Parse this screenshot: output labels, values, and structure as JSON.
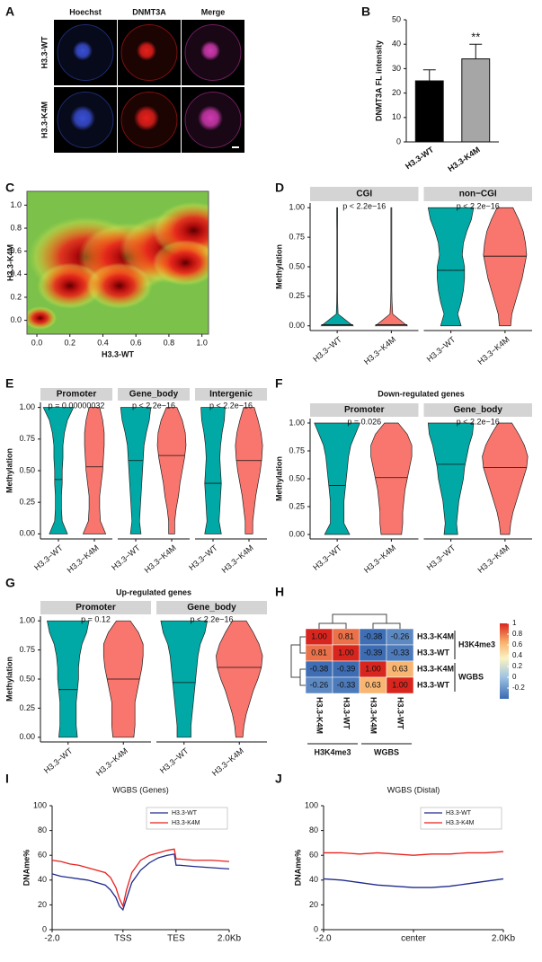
{
  "chart_data": [
    {
      "type": "image",
      "panel": "A",
      "columns": [
        {
          "name": "Hoechst",
          "color": "#3a4fd6"
        },
        {
          "name": "DNMT3A",
          "color": "#e8201c"
        },
        {
          "name": "Merge",
          "color": "#d03ab0"
        }
      ],
      "rows": [
        "H3.3-WT",
        "H3.3-K4M"
      ]
    },
    {
      "type": "bar",
      "panel": "B",
      "ylabel": "DNMT3A FL intensity",
      "categories": [
        "H3.3-WT",
        "H3.3-K4M"
      ],
      "values": [
        25,
        34
      ],
      "errors": [
        4.5,
        6
      ],
      "colors": [
        "#000000",
        "#a6a6a6"
      ],
      "ylim": [
        0,
        50
      ],
      "yticks": [
        0,
        10,
        20,
        30,
        40,
        50
      ],
      "annotations": [
        {
          "category": "H3.3-K4M",
          "text": "**"
        }
      ]
    },
    {
      "type": "density",
      "panel": "C",
      "xlabel": "H3.3-WT",
      "ylabel": "H3.3-K4M",
      "background": "#7cc24a",
      "x": [
        0.02,
        0.3,
        0.55,
        0.8,
        0.95,
        0.2,
        0.5,
        0.9
      ],
      "y": [
        0.02,
        0.55,
        0.55,
        0.62,
        0.78,
        0.3,
        0.3,
        0.5
      ],
      "spread": [
        0.1,
        0.35,
        0.3,
        0.3,
        0.25,
        0.2,
        0.2,
        0.2
      ],
      "xlim": [
        -0.06,
        1.04
      ],
      "ylim": [
        -0.12,
        1.12
      ],
      "xticks": [
        {
          "value": 0,
          "label": "0.0"
        },
        {
          "value": 0.2,
          "label": "0.2"
        },
        {
          "value": 0.4,
          "label": "0.4"
        },
        {
          "value": 0.6,
          "label": "0.6"
        },
        {
          "value": 0.8,
          "label": "0.8"
        },
        {
          "value": 1,
          "label": "1.0"
        }
      ],
      "yticks": [
        {
          "value": 0,
          "label": "0.0"
        },
        {
          "value": 0.2,
          "label": "0.2"
        },
        {
          "value": 0.4,
          "label": "0.4"
        },
        {
          "value": 0.6,
          "label": "0.6"
        },
        {
          "value": 0.8,
          "label": "0.8"
        },
        {
          "value": 1,
          "label": "1.0"
        }
      ]
    },
    {
      "type": "violin",
      "panel": "D",
      "ylabel": "Methylation",
      "ylim": [
        -0.04,
        1.04
      ],
      "yticks": [
        {
          "value": 0,
          "label": "0.00"
        },
        {
          "value": 0.25,
          "label": "0.25"
        },
        {
          "value": 0.5,
          "label": "0.50"
        },
        {
          "value": 0.75,
          "label": "0.75"
        },
        {
          "value": 1,
          "label": "1.00"
        }
      ],
      "levels": [
        0,
        0.1,
        0.2,
        0.3,
        0.4,
        0.5,
        0.6,
        0.7,
        0.8,
        0.9,
        1
      ],
      "categories": [
        "H3.3−WT",
        "H3.3−K4M"
      ],
      "colors": [
        "#00a9a5",
        "#f8766d"
      ],
      "facets": [
        {
          "name": "CGI",
          "pvalue": "p < 2.2e−16",
          "medians": [
            0.01,
            0.01
          ],
          "widths": [
            [
              0.7,
              0.04,
              0.02,
              0.015,
              0.015,
              0.015,
              0.015,
              0.015,
              0.015,
              0.02,
              0.02
            ],
            [
              0.7,
              0.06,
              0.03,
              0.02,
              0.02,
              0.02,
              0.02,
              0.02,
              0.02,
              0.02,
              0.02
            ]
          ]
        },
        {
          "name": "non−CGI",
          "pvalue": "p < 2.2e−16",
          "medians": [
            0.47,
            0.59
          ],
          "widths": [
            [
              0.45,
              0.3,
              0.45,
              0.55,
              0.6,
              0.6,
              0.5,
              0.55,
              0.7,
              0.9,
              1.0
            ],
            [
              0.25,
              0.3,
              0.45,
              0.6,
              0.75,
              0.85,
              0.95,
              0.9,
              0.8,
              0.6,
              0.35
            ]
          ]
        }
      ]
    },
    {
      "type": "violin",
      "panel": "E",
      "ylabel": "Methylation",
      "ylim": [
        -0.04,
        1.04
      ],
      "yticks": [
        {
          "value": 0,
          "label": "0.00"
        },
        {
          "value": 0.25,
          "label": "0.25"
        },
        {
          "value": 0.5,
          "label": "0.50"
        },
        {
          "value": 0.75,
          "label": "0.75"
        },
        {
          "value": 1,
          "label": "1.00"
        }
      ],
      "levels": [
        0,
        0.1,
        0.2,
        0.3,
        0.4,
        0.5,
        0.6,
        0.7,
        0.8,
        0.9,
        1
      ],
      "categories": [
        "H3.3−WT",
        "H3.3−K4M"
      ],
      "colors": [
        "#00a9a5",
        "#f8766d"
      ],
      "facets": [
        {
          "name": "Promoter",
          "pvalue": "p = 0.00000032",
          "medians": [
            0.43,
            0.53
          ],
          "widths": [
            [
              0.6,
              0.25,
              0.2,
              0.2,
              0.25,
              0.25,
              0.3,
              0.3,
              0.4,
              0.6,
              1.0
            ],
            [
              0.75,
              0.4,
              0.35,
              0.35,
              0.45,
              0.55,
              0.6,
              0.65,
              0.65,
              0.55,
              0.35
            ]
          ]
        },
        {
          "name": "Gene_body",
          "pvalue": "p < 2.2e−16",
          "medians": [
            0.58,
            0.62
          ],
          "widths": [
            [
              0.35,
              0.25,
              0.3,
              0.35,
              0.4,
              0.45,
              0.5,
              0.55,
              0.7,
              0.9,
              1.0
            ],
            [
              0.2,
              0.2,
              0.3,
              0.45,
              0.55,
              0.7,
              0.85,
              0.95,
              0.9,
              0.7,
              0.35
            ]
          ]
        },
        {
          "name": "Intergenic",
          "pvalue": "p < 2.2e−16",
          "medians": [
            0.4,
            0.58
          ],
          "widths": [
            [
              0.55,
              0.4,
              0.45,
              0.5,
              0.55,
              0.5,
              0.45,
              0.5,
              0.6,
              0.75,
              0.8
            ],
            [
              0.25,
              0.25,
              0.35,
              0.45,
              0.6,
              0.75,
              0.85,
              0.9,
              0.8,
              0.6,
              0.35
            ]
          ]
        }
      ]
    },
    {
      "type": "violin",
      "panel": "F",
      "title": "Down-regulated genes",
      "ylabel": "Methylation",
      "ylim": [
        -0.04,
        1.04
      ],
      "yticks": [
        {
          "value": 0,
          "label": "0.00"
        },
        {
          "value": 0.25,
          "label": "0.25"
        },
        {
          "value": 0.5,
          "label": "0.50"
        },
        {
          "value": 0.75,
          "label": "0.75"
        },
        {
          "value": 1,
          "label": "1.00"
        }
      ],
      "levels": [
        0,
        0.1,
        0.2,
        0.3,
        0.4,
        0.5,
        0.6,
        0.7,
        0.8,
        0.9,
        1
      ],
      "categories": [
        "H3.3−WT",
        "H3.3−K4M"
      ],
      "colors": [
        "#00a9a5",
        "#f8766d"
      ],
      "facets": [
        {
          "name": "Promoter",
          "pvalue": "p = 0.026",
          "medians": [
            0.44,
            0.51
          ],
          "widths": [
            [
              0.55,
              0.3,
              0.3,
              0.3,
              0.35,
              0.4,
              0.45,
              0.5,
              0.6,
              0.8,
              1.0
            ],
            [
              0.45,
              0.5,
              0.5,
              0.55,
              0.6,
              0.7,
              0.8,
              0.9,
              0.9,
              0.7,
              0.3
            ]
          ]
        },
        {
          "name": "Gene_body",
          "pvalue": "p < 2.2e−16",
          "medians": [
            0.63,
            0.6
          ],
          "widths": [
            [
              0.3,
              0.25,
              0.3,
              0.35,
              0.45,
              0.55,
              0.6,
              0.7,
              0.8,
              0.95,
              1.0
            ],
            [
              0.2,
              0.25,
              0.35,
              0.5,
              0.65,
              0.8,
              0.95,
              1.0,
              0.85,
              0.6,
              0.3
            ]
          ]
        }
      ]
    },
    {
      "type": "violin",
      "panel": "G",
      "title": "Up-regulated genes",
      "ylabel": "Methylation",
      "ylim": [
        -0.04,
        1.04
      ],
      "yticks": [
        {
          "value": 0,
          "label": "0.00"
        },
        {
          "value": 0.25,
          "label": "0.25"
        },
        {
          "value": 0.5,
          "label": "0.50"
        },
        {
          "value": 0.75,
          "label": "0.75"
        },
        {
          "value": 1,
          "label": "1.00"
        }
      ],
      "levels": [
        0,
        0.1,
        0.2,
        0.3,
        0.4,
        0.5,
        0.6,
        0.7,
        0.8,
        0.9,
        1
      ],
      "categories": [
        "H3.3−WT",
        "H3.3−K4M"
      ],
      "colors": [
        "#00a9a5",
        "#f8766d"
      ],
      "facets": [
        {
          "name": "Promoter",
          "pvalue": "p = 0.12",
          "medians": [
            0.41,
            0.5
          ],
          "widths": [
            [
              0.4,
              0.35,
              0.35,
              0.35,
              0.4,
              0.45,
              0.45,
              0.5,
              0.6,
              0.8,
              0.9
            ],
            [
              0.45,
              0.5,
              0.5,
              0.5,
              0.6,
              0.7,
              0.8,
              0.85,
              0.85,
              0.65,
              0.3
            ]
          ]
        },
        {
          "name": "Gene_body",
          "pvalue": "p < 2.2e−16",
          "medians": [
            0.47,
            0.6
          ],
          "widths": [
            [
              0.3,
              0.3,
              0.35,
              0.4,
              0.45,
              0.5,
              0.55,
              0.6,
              0.7,
              0.9,
              1.0
            ],
            [
              0.15,
              0.2,
              0.3,
              0.45,
              0.6,
              0.8,
              0.95,
              1.0,
              0.85,
              0.6,
              0.3
            ]
          ]
        }
      ]
    },
    {
      "type": "heatmap",
      "panel": "H",
      "rows": [
        "H3.3-K4M",
        "H3.3-WT",
        "H3.3-K4M",
        "H3.3-WT"
      ],
      "columns": [
        "H3.3-K4M",
        "H3.3-WT",
        "H3.3-K4M",
        "H3.3-WT"
      ],
      "groups": [
        "H3K4me3",
        "WGBS"
      ],
      "values": [
        [
          1,
          0.81,
          -0.38,
          -0.26
        ],
        [
          0.81,
          1,
          -0.39,
          -0.33
        ],
        [
          -0.38,
          -0.39,
          1,
          0.63
        ],
        [
          -0.26,
          -0.33,
          0.63,
          1
        ]
      ],
      "value_labels": [
        [
          "1.00",
          "0.81",
          "-0.38",
          "-0.26"
        ],
        [
          "0.81",
          "1.00",
          "-0.39",
          "-0.33"
        ],
        [
          "-0.38",
          "-0.39",
          "1.00",
          "0.63"
        ],
        [
          "-0.26",
          "-0.33",
          "0.63",
          "1.00"
        ]
      ],
      "clim": [
        -0.4,
        1
      ],
      "colorticks": [
        1,
        0.8,
        0.6,
        0.4,
        0.2,
        0,
        -0.2
      ],
      "colorscale": [
        [
          -0.4,
          "#3a6ab2"
        ],
        [
          0,
          "#9ec3e2"
        ],
        [
          0.35,
          "#fbf3c4"
        ],
        [
          0.65,
          "#f9b16c"
        ],
        [
          1,
          "#d8261f"
        ]
      ]
    },
    {
      "type": "line",
      "panel": "I",
      "title": "WGBS (Genes)",
      "ylabel": "DNAme%",
      "legend": "upper right",
      "x": [
        0,
        5,
        10,
        15,
        20,
        25,
        30,
        33,
        36,
        38,
        40,
        42,
        45,
        50,
        55,
        60,
        65,
        69,
        70,
        72,
        80,
        90,
        100
      ],
      "series": [
        {
          "name": "H3.3-WT",
          "color": "#1f2a8c",
          "values": [
            45,
            43,
            42,
            41,
            40,
            38,
            36,
            32,
            26,
            19,
            16,
            25,
            38,
            48,
            54,
            58,
            60,
            61,
            52,
            52,
            51,
            50,
            49
          ]
        },
        {
          "name": "H3.3-K4M",
          "color": "#e8201c",
          "values": [
            56,
            55,
            53,
            52,
            50,
            48,
            46,
            42,
            34,
            25,
            19,
            32,
            46,
            56,
            60,
            62,
            64,
            65,
            57,
            57,
            56,
            56,
            55
          ]
        }
      ],
      "xlim": [
        0,
        100
      ],
      "xticks": [
        {
          "value": 0,
          "label": "-2.0"
        },
        {
          "value": 40,
          "label": "TSS"
        },
        {
          "value": 70,
          "label": "TES"
        },
        {
          "value": 100,
          "label": "2.0Kb"
        }
      ],
      "ylim": [
        0,
        100
      ],
      "yticks": [
        0,
        20,
        40,
        60,
        80,
        100
      ]
    },
    {
      "type": "line",
      "panel": "J",
      "title": "WGBS (Distal)",
      "ylabel": "DNAme%",
      "legend": "upper right",
      "x": [
        0,
        10,
        20,
        30,
        40,
        50,
        60,
        70,
        80,
        90,
        100
      ],
      "series": [
        {
          "name": "H3.3-WT",
          "color": "#1f2a8c",
          "values": [
            41,
            40,
            38,
            36,
            35,
            34,
            34,
            35,
            37,
            39,
            41
          ]
        },
        {
          "name": "H3.3-K4M",
          "color": "#e8201c",
          "values": [
            62,
            62,
            61,
            62,
            61,
            60,
            61,
            61,
            62,
            62,
            63
          ]
        }
      ],
      "xlim": [
        0,
        100
      ],
      "xticks": [
        {
          "value": 0,
          "label": "-2.0"
        },
        {
          "value": 50,
          "label": "center"
        },
        {
          "value": 100,
          "label": "2.0Kb"
        }
      ],
      "ylim": [
        0,
        100
      ],
      "yticks": [
        0,
        20,
        40,
        60,
        80,
        100
      ]
    }
  ]
}
